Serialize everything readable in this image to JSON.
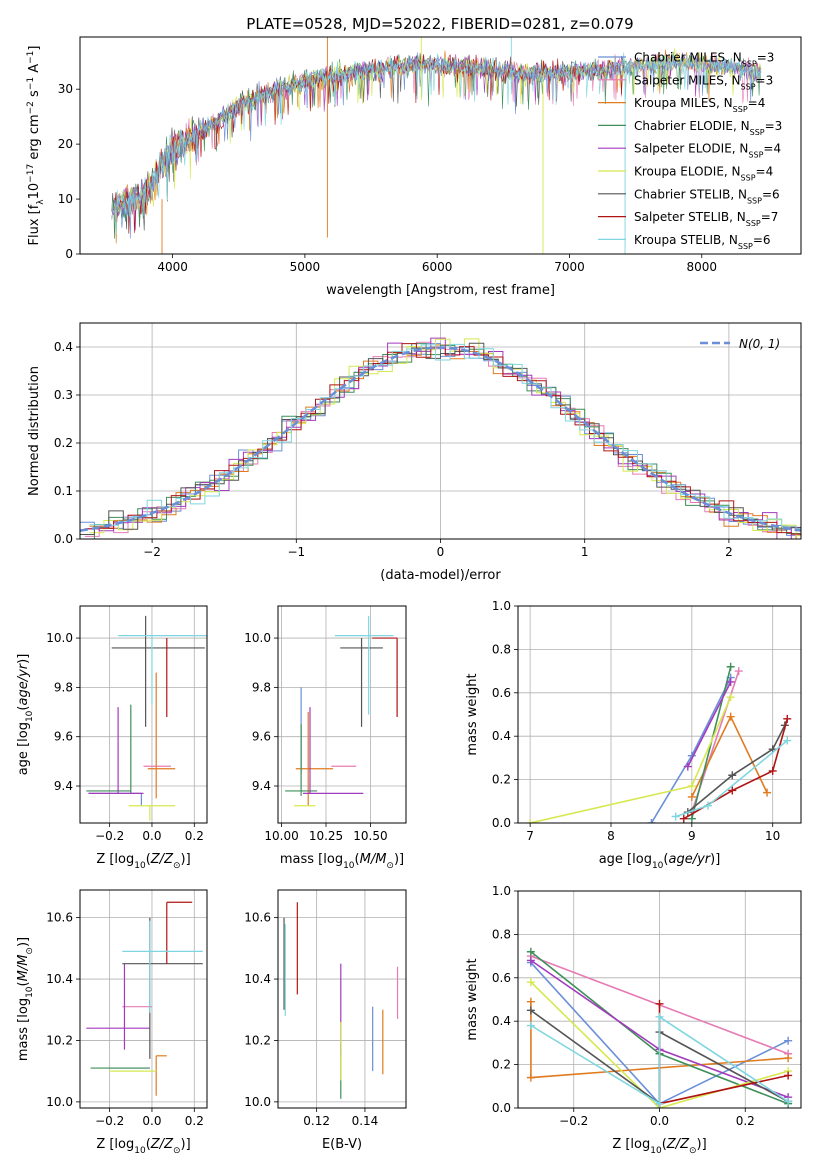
{
  "figure_title": "PLATE=0528, MJD=52022, FIBERID=0281, z=0.079",
  "series_names": [
    [
      "Chabrier MILES, N",
      "SSP",
      "=3"
    ],
    [
      "Salpeter MILES, N",
      "SSP",
      "=3"
    ],
    [
      "Kroupa MILES, N",
      "SSP",
      "=4"
    ],
    [
      "Chabrier ELODIE, N",
      "SSP",
      "=3"
    ],
    [
      "Salpeter ELODIE, N",
      "SSP",
      "=4"
    ],
    [
      "Kroupa ELODIE, N",
      "SSP",
      "=4"
    ],
    [
      "Chabrier STELIB, N",
      "SSP",
      "=6"
    ],
    [
      "Salpeter STELIB, N",
      "SSP",
      "=7"
    ],
    [
      "Kroupa STELIB, N",
      "SSP",
      "=6"
    ]
  ],
  "colors": [
    "#6a8fd8",
    "#e67bb5",
    "#e07b20",
    "#3f8f5a",
    "#a33bbd",
    "#d6e84e",
    "#555555",
    "#b01515",
    "#7fd6e0"
  ],
  "chart_data": [
    {
      "id": "spectrum",
      "type": "line",
      "title": "PLATE=0528, MJD=52022, FIBERID=0281, z=0.079",
      "xlabel": "wavelength [Angstrom, rest frame]",
      "ylabel": "Flux [f_lambda 10^-17 erg cm^-2 s^-1 A^-1]",
      "xlim": [
        3300,
        8750
      ],
      "ylim": [
        0,
        39.5
      ],
      "xticks": [
        4000,
        5000,
        6000,
        7000,
        8000
      ],
      "yticks": [
        0,
        10,
        20,
        30
      ],
      "grid": false,
      "legend": "right",
      "data_continuum": {
        "x": [
          3500,
          3800,
          4000,
          4200,
          4500,
          4800,
          5000,
          5200,
          5500,
          5800,
          6000,
          6300,
          6600,
          7000,
          7400,
          7800,
          8200,
          8500
        ],
        "y": [
          8,
          11,
          19,
          22,
          27,
          30,
          31.5,
          32.5,
          33.5,
          34.5,
          34.5,
          34,
          33,
          33,
          34,
          35,
          34,
          33
        ]
      },
      "spikes": [
        {
          "x": 5170,
          "y0": 3,
          "y1": 39.5
        },
        {
          "x": 5880,
          "y0": 28,
          "y1": 39.5
        },
        {
          "x": 6560,
          "y0": 30,
          "y1": 39.5
        },
        {
          "x": 3920,
          "y0": 0,
          "y1": 10
        },
        {
          "x": 6800,
          "y0": 0,
          "y1": 32
        },
        {
          "x": 7420,
          "y0": 0,
          "y1": 34
        }
      ]
    },
    {
      "id": "residuals",
      "type": "bar",
      "xlabel": "(data-model)/error",
      "ylabel": "Normed distribution",
      "xlim": [
        -2.5,
        2.5
      ],
      "ylim": [
        0,
        0.45
      ],
      "xticks": [
        -2,
        -1,
        0,
        1,
        2
      ],
      "yticks": [
        0.0,
        0.1,
        0.2,
        0.3,
        0.4
      ],
      "grid": true,
      "legend_label": "N(0, 1)",
      "legend": "top-right",
      "bin_width": 0.1,
      "bin_start": -2.5
    },
    {
      "id": "age_vs_Z",
      "type": "scatter",
      "xlabel": "Z [log10(Z/Z_sun)]",
      "ylabel": "age  [log10(age/yr)]",
      "xlim": [
        -0.34,
        0.26
      ],
      "ylim": [
        9.25,
        10.13
      ],
      "xticks": [
        -0.2,
        0.0,
        0.2
      ],
      "yticks": [
        9.4,
        9.6,
        9.8,
        10.0
      ],
      "points": [
        {
          "x": -0.05,
          "y": 9.37,
          "xerr": [
            0.25,
            0.0
          ],
          "yerr": [
            0.05,
            0.0
          ]
        },
        {
          "x": 0.0,
          "y": 9.48,
          "xerr": [
            0.04,
            0.09
          ],
          "yerr": [
            0.0,
            0.0
          ]
        },
        {
          "x": 0.02,
          "y": 9.47,
          "xerr": [
            0.04,
            0.09
          ],
          "yerr": [
            0.12,
            0.39
          ]
        },
        {
          "x": -0.1,
          "y": 9.38,
          "xerr": [
            0.21,
            0.0
          ],
          "yerr": [
            0.01,
            0.35
          ]
        },
        {
          "x": -0.16,
          "y": 9.37,
          "xerr": [
            0.14,
            0.12
          ],
          "yerr": [
            0.0,
            0.35
          ]
        },
        {
          "x": -0.01,
          "y": 9.32,
          "xerr": [
            0.1,
            0.12
          ],
          "yerr": [
            0.06,
            0.0
          ]
        },
        {
          "x": -0.03,
          "y": 9.96,
          "xerr": [
            0.16,
            0.28
          ],
          "yerr": [
            0.32,
            0.13
          ]
        },
        {
          "x": 0.07,
          "y": 10.0,
          "xerr": [
            0.0,
            0.0
          ],
          "yerr": [
            0.32,
            0.0
          ]
        },
        {
          "x": 0.0,
          "y": 10.01,
          "xerr": [
            0.16,
            0.27
          ],
          "yerr": [
            0.28,
            0.0
          ]
        }
      ]
    },
    {
      "id": "age_vs_mass",
      "type": "scatter",
      "xlabel": "mass [log10(M/M_sun)]",
      "ylabel": "",
      "xlim": [
        9.98,
        10.7
      ],
      "ylim": [
        9.25,
        10.13
      ],
      "xticks": [
        10.0,
        10.25,
        10.5
      ],
      "yticks": [
        9.4,
        9.6,
        9.8,
        10.0
      ],
      "points": [
        {
          "x": 10.11,
          "y": 9.45,
          "xerr": [
            0.0,
            0.0
          ],
          "yerr": [
            0.0,
            0.35
          ]
        },
        {
          "x": 10.28,
          "y": 9.48,
          "xerr": [
            0.0,
            0.14
          ],
          "yerr": [
            0.0,
            0.0
          ]
        },
        {
          "x": 10.15,
          "y": 9.47,
          "xerr": [
            0.07,
            0.14
          ],
          "yerr": [
            0.15,
            0.23
          ]
        },
        {
          "x": 10.11,
          "y": 9.38,
          "xerr": [
            0.09,
            0.09
          ],
          "yerr": [
            0.02,
            0.27
          ]
        },
        {
          "x": 10.16,
          "y": 9.37,
          "xerr": [
            0.04,
            0.3
          ],
          "yerr": [
            0.0,
            0.35
          ]
        },
        {
          "x": 10.13,
          "y": 9.32,
          "xerr": [
            0.06,
            0.06
          ],
          "yerr": [
            0.0,
            0.0
          ]
        },
        {
          "x": 10.45,
          "y": 9.96,
          "xerr": [
            0.12,
            0.12
          ],
          "yerr": [
            0.32,
            0.04
          ]
        },
        {
          "x": 10.65,
          "y": 10.0,
          "xerr": [
            0.14,
            0.0
          ],
          "yerr": [
            0.32,
            0.0
          ]
        },
        {
          "x": 10.49,
          "y": 10.01,
          "xerr": [
            0.19,
            0.14
          ],
          "yerr": [
            0.32,
            0.08
          ]
        }
      ]
    },
    {
      "id": "weight_vs_age",
      "type": "line",
      "xlabel": "age  [log10(age/yr)]",
      "ylabel": "mass weight",
      "xlim": [
        6.85,
        10.35
      ],
      "ylim": [
        0,
        1
      ],
      "xticks": [
        7,
        8,
        9,
        10
      ],
      "yticks": [
        0.0,
        0.2,
        0.4,
        0.6,
        0.8,
        1.0
      ],
      "grid": true,
      "series": [
        {
          "points": [
            [
              8.5,
              0.0
            ],
            [
              9.0,
              0.31
            ],
            [
              9.48,
              0.67
            ]
          ]
        },
        {
          "points": [
            [
              9.0,
              0.05
            ],
            [
              9.58,
              0.7
            ]
          ]
        },
        {
          "points": [
            [
              9.0,
              0.12
            ],
            [
              9.48,
              0.49
            ],
            [
              9.93,
              0.14
            ]
          ]
        },
        {
          "points": [
            [
              9.0,
              0.02
            ],
            [
              9.48,
              0.72
            ]
          ]
        },
        {
          "points": [
            [
              8.95,
              0.26
            ],
            [
              9.48,
              0.65
            ]
          ]
        },
        {
          "points": [
            [
              7.0,
              0.0
            ],
            [
              9.0,
              0.17
            ],
            [
              9.48,
              0.58
            ]
          ]
        },
        {
          "points": [
            [
              8.95,
              0.05
            ],
            [
              9.5,
              0.22
            ],
            [
              10.0,
              0.34
            ],
            [
              10.15,
              0.45
            ]
          ]
        },
        {
          "points": [
            [
              8.9,
              0.02
            ],
            [
              9.5,
              0.15
            ],
            [
              10.0,
              0.24
            ],
            [
              10.18,
              0.48
            ]
          ]
        },
        {
          "points": [
            [
              8.8,
              0.03
            ],
            [
              9.2,
              0.08
            ],
            [
              10.18,
              0.38
            ]
          ]
        }
      ]
    },
    {
      "id": "mass_vs_Z",
      "type": "scatter",
      "xlabel": "Z [log10(Z/Z_sun)]",
      "ylabel": "mass [log10(M/M_sun)]",
      "xlim": [
        -0.34,
        0.26
      ],
      "ylim": [
        9.98,
        10.69
      ],
      "xticks": [
        -0.2,
        0.0,
        0.2
      ],
      "yticks": [
        10.0,
        10.2,
        10.4,
        10.6
      ],
      "points": [
        {
          "x": -0.01,
          "y": 10.11,
          "xerr": [
            0.2,
            0.0
          ],
          "yerr": [
            0.0,
            0.0
          ]
        },
        {
          "x": -0.07,
          "y": 10.31,
          "xerr": [
            0.07,
            0.07
          ],
          "yerr": [
            0.0,
            0.0
          ]
        },
        {
          "x": 0.02,
          "y": 10.15,
          "xerr": [
            0.0,
            0.05
          ],
          "yerr": [
            0.13,
            0.0
          ]
        },
        {
          "x": -0.15,
          "y": 10.11,
          "xerr": [
            0.14,
            0.14
          ],
          "yerr": [
            0.0,
            0.0
          ]
        },
        {
          "x": -0.13,
          "y": 10.24,
          "xerr": [
            0.18,
            0.12
          ],
          "yerr": [
            0.07,
            0.21
          ]
        },
        {
          "x": -0.08,
          "y": 10.1,
          "xerr": [
            0.12,
            0.1
          ],
          "yerr": [
            0.0,
            0.0
          ]
        },
        {
          "x": -0.01,
          "y": 10.45,
          "xerr": [
            0.13,
            0.25
          ],
          "yerr": [
            0.31,
            0.15
          ]
        },
        {
          "x": 0.07,
          "y": 10.65,
          "xerr": [
            0.0,
            0.12
          ],
          "yerr": [
            0.2,
            0.0
          ]
        },
        {
          "x": -0.01,
          "y": 10.49,
          "xerr": [
            0.13,
            0.25
          ],
          "yerr": [
            0.2,
            0.1
          ]
        }
      ]
    },
    {
      "id": "mass_vs_ebv",
      "type": "scatter",
      "xlabel": "E(B-V)",
      "ylabel": "",
      "xlim": [
        0.104,
        0.157
      ],
      "ylim": [
        9.98,
        10.69
      ],
      "xticks": [
        0.12,
        0.14
      ],
      "yticks": [
        10.0,
        10.2,
        10.4,
        10.6
      ],
      "points": [
        {
          "x": 0.1432,
          "y": 10.2,
          "yerr": [
            0.1,
            0.11
          ]
        },
        {
          "x": 0.1535,
          "y": 10.35,
          "yerr": [
            0.08,
            0.09
          ]
        },
        {
          "x": 0.1474,
          "y": 10.2,
          "yerr": [
            0.11,
            0.1
          ]
        },
        {
          "x": 0.13,
          "y": 10.08,
          "yerr": [
            0.07,
            0.11
          ]
        },
        {
          "x": 0.13,
          "y": 10.3,
          "yerr": [
            0.15,
            0.15
          ]
        },
        {
          "x": 0.13,
          "y": 10.17,
          "yerr": [
            0.1,
            0.09
          ]
        },
        {
          "x": 0.1065,
          "y": 10.45,
          "yerr": [
            0.15,
            0.15
          ]
        },
        {
          "x": 0.112,
          "y": 10.5,
          "yerr": [
            0.15,
            0.15
          ]
        },
        {
          "x": 0.107,
          "y": 10.43,
          "yerr": [
            0.15,
            0.15
          ]
        }
      ]
    },
    {
      "id": "weight_vs_Z",
      "type": "line",
      "xlabel": "Z [log10(Z/Z_sun)]",
      "ylabel": "mass weight",
      "xlim": [
        -0.33,
        0.33
      ],
      "ylim": [
        0,
        1
      ],
      "xticks": [
        -0.2,
        0.0,
        0.2
      ],
      "yticks": [
        0.0,
        0.2,
        0.4,
        0.6,
        0.8,
        1.0
      ],
      "grid": true,
      "series": [
        {
          "points": [
            [
              -0.3,
              0.67
            ],
            [
              0.0,
              0.02
            ],
            [
              0.3,
              0.31
            ]
          ]
        },
        {
          "points": [
            [
              -0.3,
              0.7
            ],
            [
              0.3,
              0.25
            ]
          ]
        },
        {
          "points": [
            [
              -0.3,
              0.49
            ],
            [
              -0.3,
              0.14
            ],
            [
              0.3,
              0.23
            ]
          ]
        },
        {
          "points": [
            [
              -0.3,
              0.72
            ],
            [
              0.0,
              0.25
            ],
            [
              0.3,
              0.02
            ]
          ]
        },
        {
          "points": [
            [
              -0.3,
              0.68
            ],
            [
              0.0,
              0.27
            ],
            [
              0.3,
              0.05
            ]
          ]
        },
        {
          "points": [
            [
              -0.3,
              0.58
            ],
            [
              0.0,
              0.0
            ],
            [
              0.3,
              0.17
            ]
          ]
        },
        {
          "points": [
            [
              -0.3,
              0.45
            ],
            [
              0.0,
              0.02
            ],
            [
              0.0,
              0.35
            ],
            [
              0.3,
              0.03
            ]
          ]
        },
        {
          "points": [
            [
              0.0,
              0.48
            ],
            [
              0.0,
              0.02
            ],
            [
              0.3,
              0.15
            ]
          ]
        },
        {
          "points": [
            [
              -0.3,
              0.38
            ],
            [
              0.0,
              0.02
            ],
            [
              0.0,
              0.42
            ],
            [
              0.3,
              0.03
            ]
          ]
        }
      ]
    }
  ]
}
